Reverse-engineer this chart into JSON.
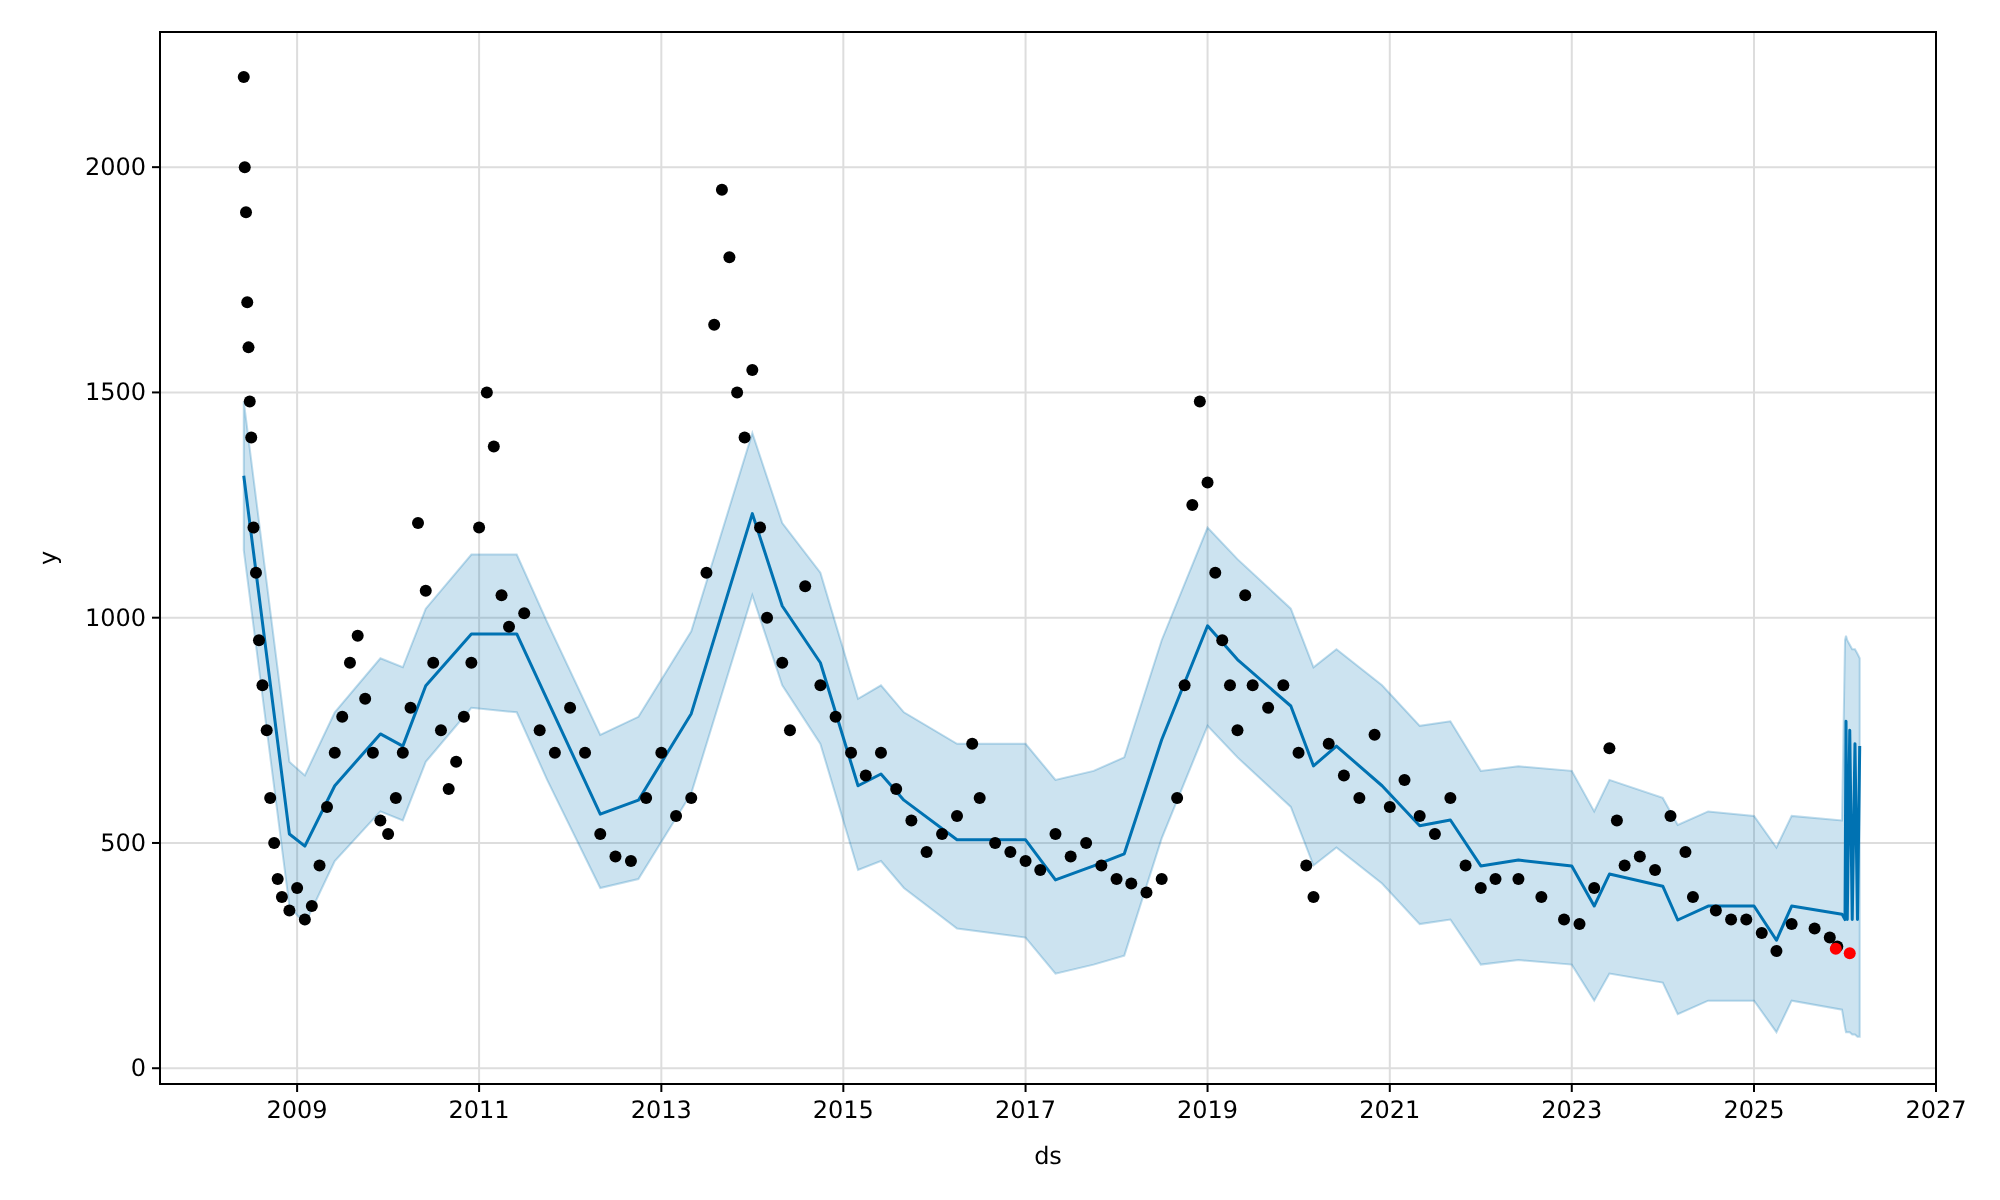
{
  "chart_data": {
    "type": "scatter",
    "xlabel": "ds",
    "ylabel": "y",
    "xlim": [
      "2007-07",
      "2027-01"
    ],
    "ylim": [
      -35,
      2300
    ],
    "xticks": [
      "2009",
      "2011",
      "2013",
      "2015",
      "2017",
      "2019",
      "2021",
      "2023",
      "2025",
      "2027"
    ],
    "yticks": [
      0,
      500,
      1000,
      1500,
      2000
    ],
    "grid": true,
    "series": [
      {
        "type": "line",
        "color": "#0072b2",
        "line_style": "solid",
        "x": [
          "2008-06",
          "2008-12",
          "2009-02",
          "2009-06",
          "2009-12",
          "2010-03",
          "2010-06",
          "2010-12",
          "2011-06",
          "2011-10",
          "2012-05",
          "2012-10",
          "2013-05",
          "2014-01",
          "2014-05",
          "2014-10",
          "2015-03",
          "2015-06",
          "2015-09",
          "2016-04",
          "2017-01",
          "2017-05",
          "2017-10",
          "2018-02",
          "2018-07",
          "2019-01",
          "2019-05",
          "2019-12",
          "2020-03",
          "2020-06",
          "2020-12",
          "2021-05",
          "2021-09",
          "2022-01",
          "2022-06",
          "2023-01",
          "2023-04",
          "2023-06",
          "2024-01",
          "2024-03",
          "2024-07",
          "2025-01",
          "2025-04",
          "2025-06",
          "2025-12-20",
          "2026-01-01",
          "2026-01-05",
          "2026-01-10",
          "2026-01-20",
          "2026-01-30",
          "2026-02-10",
          "2026-02-20",
          "2026-03-01"
        ],
        "values": [
          1315,
          520,
          493,
          627,
          742,
          715,
          849,
          964,
          964,
          818,
          564,
          595,
          787,
          1231,
          1026,
          900,
          627,
          653,
          595,
          507,
          507,
          418,
          449,
          476,
          729,
          982,
          907,
          804,
          671,
          715,
          627,
          538,
          551,
          449,
          462,
          449,
          360,
          431,
          404,
          329,
          360,
          360,
          284,
          360,
          342,
          330,
          770,
          330,
          750,
          330,
          720,
          330,
          715
        ],
        "upper": [
          1480,
          680,
          650,
          790,
          910,
          890,
          1020,
          1140,
          1140,
          990,
          740,
          780,
          970,
          1410,
          1210,
          1100,
          820,
          850,
          790,
          720,
          720,
          640,
          660,
          690,
          950,
          1200,
          1130,
          1020,
          890,
          930,
          850,
          760,
          770,
          660,
          670,
          660,
          570,
          640,
          600,
          540,
          570,
          560,
          490,
          560,
          550,
          950,
          960,
          950,
          940,
          930,
          930,
          920,
          910
        ],
        "lower": [
          1150,
          360,
          320,
          460,
          570,
          550,
          680,
          800,
          790,
          640,
          400,
          420,
          610,
          1050,
          850,
          720,
          440,
          460,
          400,
          310,
          290,
          210,
          230,
          250,
          510,
          760,
          690,
          580,
          450,
          490,
          410,
          320,
          330,
          230,
          240,
          230,
          150,
          210,
          190,
          120,
          150,
          150,
          80,
          150,
          130,
          90,
          80,
          80,
          80,
          75,
          75,
          70,
          70
        ]
      },
      {
        "color": "#000000",
        "marker": "circle",
        "x": [
          "2008-06-01",
          "2008-06-05",
          "2008-06-10",
          "2008-06-15",
          "2008-06-20",
          "2008-06-25",
          "2008-07-01",
          "2008-07-10",
          "2008-07-20",
          "2008-08-01",
          "2008-08-15",
          "2008-09-01",
          "2008-09-15",
          "2008-10-01",
          "2008-10-15",
          "2008-11-01",
          "2008-12-01",
          "2009-01",
          "2009-02",
          "2009-03",
          "2009-04",
          "2009-05",
          "2009-06",
          "2009-07",
          "2009-08",
          "2009-09",
          "2009-10",
          "2009-11",
          "2009-12",
          "2010-01",
          "2010-02",
          "2010-03",
          "2010-04",
          "2010-05",
          "2010-06",
          "2010-07",
          "2010-08",
          "2010-09",
          "2010-10",
          "2010-11",
          "2010-12",
          "2011-01",
          "2011-02",
          "2011-03",
          "2011-04",
          "2011-05",
          "2011-07",
          "2011-09",
          "2011-11",
          "2012-01",
          "2012-03",
          "2012-05",
          "2012-07",
          "2012-09",
          "2012-11",
          "2013-01",
          "2013-03",
          "2013-05",
          "2013-07",
          "2013-08",
          "2013-09",
          "2013-10",
          "2013-11",
          "2013-12",
          "2014-01",
          "2014-02",
          "2014-03",
          "2014-05",
          "2014-06",
          "2014-08",
          "2014-10",
          "2014-12",
          "2015-02",
          "2015-04",
          "2015-06",
          "2015-08",
          "2015-10",
          "2015-12",
          "2016-02",
          "2016-04",
          "2016-06",
          "2016-07",
          "2016-09",
          "2016-11",
          "2017-01",
          "2017-03",
          "2017-05",
          "2017-07",
          "2017-09",
          "2017-11",
          "2018-01",
          "2018-03",
          "2018-05",
          "2018-07",
          "2018-09",
          "2018-10",
          "2018-11",
          "2018-12",
          "2019-01",
          "2019-02",
          "2019-03",
          "2019-04",
          "2019-05",
          "2019-06",
          "2019-07",
          "2019-09",
          "2019-11",
          "2020-01",
          "2020-02",
          "2020-03",
          "2020-05",
          "2020-07",
          "2020-09",
          "2020-11",
          "2021-01",
          "2021-03",
          "2021-05",
          "2021-07",
          "2021-09",
          "2021-11",
          "2022-01",
          "2022-03",
          "2022-06",
          "2022-09",
          "2022-12",
          "2023-02",
          "2023-04",
          "2023-06",
          "2023-07",
          "2023-08",
          "2023-10",
          "2023-12",
          "2024-02",
          "2024-04",
          "2024-05",
          "2024-08",
          "2024-10",
          "2024-12",
          "2025-02",
          "2025-04",
          "2025-06",
          "2025-09",
          "2025-11",
          "2025-12"
        ],
        "values": [
          2200,
          2000,
          1900,
          1700,
          1600,
          1480,
          1400,
          1200,
          1100,
          950,
          850,
          750,
          600,
          500,
          420,
          380,
          350,
          400,
          330,
          360,
          450,
          580,
          700,
          780,
          900,
          960,
          820,
          700,
          550,
          520,
          600,
          700,
          800,
          1210,
          1060,
          900,
          750,
          620,
          680,
          780,
          900,
          1200,
          1500,
          1380,
          1050,
          980,
          1010,
          750,
          700,
          800,
          700,
          520,
          470,
          460,
          600,
          700,
          560,
          600,
          1100,
          1650,
          1950,
          1800,
          1500,
          1400,
          1550,
          1200,
          1000,
          900,
          750,
          1070,
          850,
          780,
          700,
          650,
          700,
          620,
          550,
          480,
          520,
          560,
          720,
          600,
          500,
          480,
          460,
          440,
          520,
          470,
          500,
          450,
          420,
          410,
          390,
          420,
          600,
          850,
          1250,
          1480,
          1300,
          1100,
          950,
          850,
          750,
          1050,
          850,
          800,
          850,
          700,
          450,
          380,
          720,
          650,
          600,
          740,
          580,
          640,
          560,
          520,
          600,
          450,
          400,
          420,
          420,
          380,
          330,
          320,
          400,
          710,
          550,
          450,
          470,
          440,
          560,
          480,
          380,
          350,
          330,
          330,
          300,
          260,
          320,
          310,
          290,
          270
        ]
      },
      {
        "type": "scatter",
        "color": "#ff0000",
        "marker": "circle",
        "x": [
          "2025-11-25",
          "2026-01-20"
        ],
        "values": [
          265,
          255
        ]
      }
    ]
  }
}
